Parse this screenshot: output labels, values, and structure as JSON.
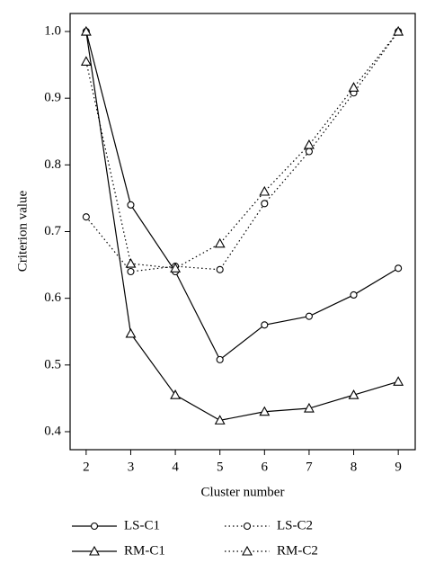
{
  "chart_data": {
    "type": "line",
    "x_label": "Cluster number",
    "y_label": "Criterion value",
    "x": [
      2,
      3,
      4,
      5,
      6,
      7,
      8,
      9
    ],
    "xlim": [
      1.64,
      9.38
    ],
    "xticks": [
      2,
      3,
      4,
      5,
      6,
      7,
      8,
      9
    ],
    "ylim": [
      0.373,
      1.027
    ],
    "yticks": [
      {
        "value": 0.4,
        "label": "0.4"
      },
      {
        "value": 0.5,
        "label": "0.5"
      },
      {
        "value": 0.6,
        "label": "0.6"
      },
      {
        "value": 0.7,
        "label": "0.7"
      },
      {
        "value": 0.8,
        "label": "0.8"
      },
      {
        "value": 0.9,
        "label": "0.9"
      },
      {
        "value": 1.0,
        "label": "1.0"
      }
    ],
    "grid": false,
    "legend": "bottom",
    "series": [
      {
        "name": "LS-C1",
        "color": "#000000",
        "style": "solid",
        "marker": "circle",
        "values": [
          1.0,
          0.74,
          0.64,
          0.508,
          0.56,
          0.573,
          0.605,
          0.645
        ]
      },
      {
        "name": "RM-C1",
        "color": "#000000",
        "style": "solid",
        "marker": "triangle",
        "values": [
          1.0,
          0.547,
          0.455,
          0.417,
          0.43,
          0.435,
          0.455,
          0.475
        ]
      },
      {
        "name": "LS-C2",
        "color": "#000000",
        "style": "dotted",
        "marker": "circle",
        "values": [
          0.722,
          0.64,
          0.648,
          0.643,
          0.742,
          0.82,
          0.908,
          1.0
        ]
      },
      {
        "name": "RM-C2",
        "color": "#000000",
        "style": "dotted",
        "marker": "triangle",
        "values": [
          0.955,
          0.652,
          0.645,
          0.682,
          0.76,
          0.83,
          0.916,
          1.0
        ]
      }
    ]
  }
}
